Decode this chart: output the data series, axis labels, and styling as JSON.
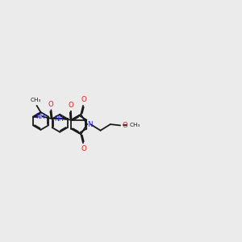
{
  "bg_color": "#ebebeb",
  "bond_color": "#1a1a1a",
  "N_color": "#2020dd",
  "O_color": "#dd2020",
  "lw": 1.3,
  "dbo": 0.042,
  "r": 0.4,
  "xlim": [
    -0.5,
    10.5
  ],
  "ylim": [
    2.5,
    7.5
  ]
}
